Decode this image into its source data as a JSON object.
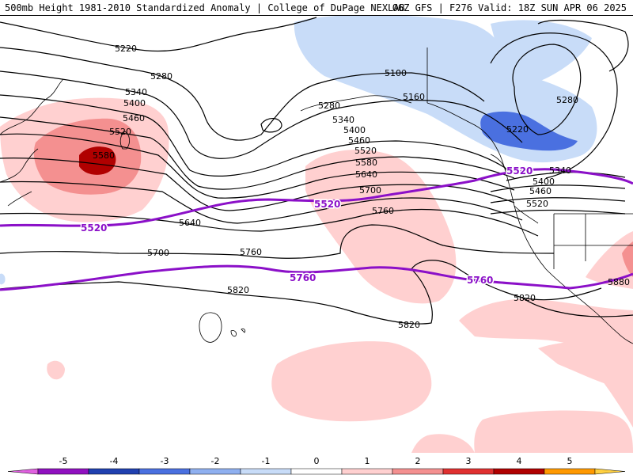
{
  "header": {
    "title_left": "500mb Height 1981-2010 Standardized Anomaly | College of DuPage NEXLAB",
    "title_right": "06Z GFS | F276 Valid: 18Z SUN APR 06 2025"
  },
  "contour_labels": {
    "black": [
      "5220",
      "5280",
      "5340",
      "5400",
      "5460",
      "5520",
      "5580",
      "5100",
      "5160",
      "5280",
      "5340",
      "5400",
      "5460",
      "5520",
      "5580",
      "5640",
      "5700",
      "5760",
      "5640",
      "5700",
      "5760",
      "5820",
      "5820",
      "5220",
      "5280",
      "5340",
      "5400",
      "5460",
      "5520",
      "5820",
      "5880"
    ],
    "purple": [
      "5520",
      "5520",
      "5520",
      "5760",
      "5760"
    ]
  },
  "colorbar": {
    "tick_labels": [
      "-5",
      "-4",
      "-3",
      "-2",
      "-1",
      "0",
      "1",
      "2",
      "3",
      "4",
      "5"
    ],
    "colors": [
      "#e060e0",
      "#9010c0",
      "#2040b0",
      "#4a70e0",
      "#8fb0f0",
      "#c8dcf8",
      "#ffffff",
      "#ffd0d0",
      "#f49090",
      "#e03030",
      "#b00000",
      "#ff9900",
      "#ffd040"
    ]
  },
  "colors": {
    "purple_contour": "#8b10c8",
    "black_contour": "#000000",
    "coastline": "#000000"
  }
}
